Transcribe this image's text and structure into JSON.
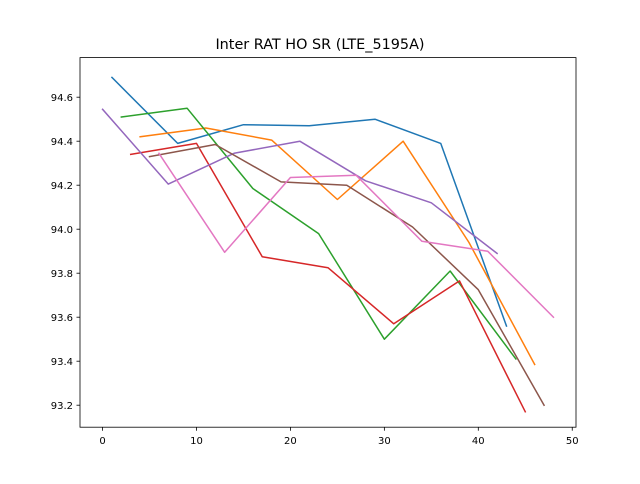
{
  "chart_data": {
    "type": "line",
    "title": "Inter RAT HO SR (LTE_5195A)",
    "xlabel": "",
    "ylabel": "",
    "xlim": [
      -2.4,
      50.4
    ],
    "ylim": [
      93.1,
      94.78
    ],
    "xticks": [
      0,
      10,
      20,
      30,
      40,
      50
    ],
    "yticks": [
      93.2,
      93.4,
      93.6,
      93.8,
      94.0,
      94.2,
      94.4,
      94.6
    ],
    "grid": false,
    "legend": "none",
    "series": [
      {
        "color": "#1f77b4",
        "points": [
          [
            1,
            94.69
          ],
          [
            8,
            94.39
          ],
          [
            15,
            94.475
          ],
          [
            22,
            94.47
          ],
          [
            29,
            94.5
          ],
          [
            36,
            94.39
          ],
          [
            43,
            93.56
          ]
        ]
      },
      {
        "color": "#ff7f0e",
        "points": [
          [
            4,
            94.42
          ],
          [
            11,
            94.46
          ],
          [
            18,
            94.405
          ],
          [
            25,
            94.135
          ],
          [
            32,
            94.4
          ],
          [
            39,
            93.94
          ],
          [
            46,
            93.385
          ]
        ]
      },
      {
        "color": "#2ca02c",
        "points": [
          [
            2,
            94.51
          ],
          [
            9,
            94.55
          ],
          [
            16,
            94.185
          ],
          [
            23,
            93.98
          ],
          [
            30,
            93.5
          ],
          [
            37,
            93.81
          ],
          [
            44,
            93.41
          ]
        ]
      },
      {
        "color": "#d62728",
        "points": [
          [
            3,
            94.34
          ],
          [
            10,
            94.39
          ],
          [
            17,
            93.875
          ],
          [
            24,
            93.825
          ],
          [
            31,
            93.57
          ],
          [
            38,
            93.765
          ],
          [
            45,
            93.17
          ]
        ]
      },
      {
        "color": "#9467bd",
        "points": [
          [
            0,
            94.545
          ],
          [
            7,
            94.205
          ],
          [
            14,
            94.345
          ],
          [
            21,
            94.4
          ],
          [
            28,
            94.22
          ],
          [
            35,
            94.12
          ],
          [
            42,
            93.89
          ]
        ]
      },
      {
        "color": "#8c564b",
        "points": [
          [
            5,
            94.33
          ],
          [
            12,
            94.385
          ],
          [
            19,
            94.215
          ],
          [
            26,
            94.2
          ],
          [
            33,
            94.01
          ],
          [
            40,
            93.725
          ],
          [
            47,
            93.2
          ]
        ]
      },
      {
        "color": "#e377c2",
        "points": [
          [
            6,
            94.345
          ],
          [
            13,
            93.895
          ],
          [
            20,
            94.235
          ],
          [
            27,
            94.245
          ],
          [
            34,
            93.945
          ],
          [
            41,
            93.9
          ],
          [
            48,
            93.6
          ]
        ]
      }
    ]
  }
}
